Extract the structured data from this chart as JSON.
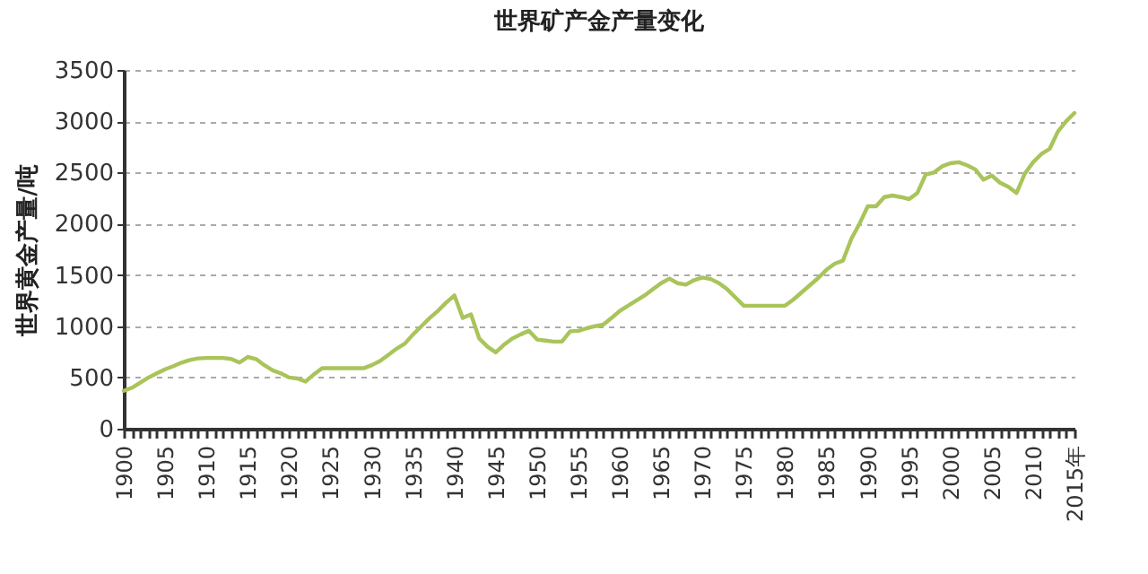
{
  "chart_data": {
    "type": "line",
    "title": "世界矿产金产量变化",
    "ylabel": "世界黄金产量/吨",
    "x": [
      1900,
      1901,
      1902,
      1903,
      1904,
      1905,
      1906,
      1907,
      1908,
      1909,
      1910,
      1911,
      1912,
      1913,
      1914,
      1915,
      1916,
      1917,
      1918,
      1919,
      1920,
      1921,
      1922,
      1923,
      1924,
      1925,
      1926,
      1927,
      1928,
      1929,
      1930,
      1931,
      1932,
      1933,
      1934,
      1935,
      1936,
      1937,
      1938,
      1939,
      1940,
      1941,
      1942,
      1943,
      1944,
      1945,
      1946,
      1947,
      1948,
      1949,
      1950,
      1951,
      1952,
      1953,
      1954,
      1955,
      1956,
      1957,
      1958,
      1959,
      1960,
      1961,
      1962,
      1963,
      1964,
      1965,
      1966,
      1967,
      1968,
      1969,
      1970,
      1971,
      1972,
      1973,
      1974,
      1975,
      1976,
      1977,
      1978,
      1979,
      1980,
      1981,
      1982,
      1983,
      1984,
      1985,
      1986,
      1987,
      1988,
      1989,
      1990,
      1991,
      1992,
      1993,
      1994,
      1995,
      1996,
      1997,
      1998,
      1999,
      2000,
      2001,
      2002,
      2003,
      2004,
      2005,
      2006,
      2007,
      2008,
      2009,
      2010,
      2011,
      2012,
      2013,
      2014,
      2015
    ],
    "series": [
      {
        "color": "#a9c45a",
        "values": [
          370,
          400,
          450,
          500,
          540,
          580,
          610,
          645,
          670,
          686,
          690,
          690,
          690,
          680,
          645,
          700,
          680,
          620,
          570,
          540,
          500,
          490,
          460,
          530,
          590,
          590,
          590,
          590,
          590,
          590,
          620,
          660,
          720,
          780,
          830,
          920,
          1000,
          1080,
          1150,
          1230,
          1300,
          1080,
          1115,
          880,
          800,
          745,
          820,
          880,
          920,
          955,
          870,
          860,
          850,
          850,
          950,
          955,
          980,
          1000,
          1015,
          1080,
          1150,
          1200,
          1250,
          1300,
          1360,
          1420,
          1465,
          1420,
          1405,
          1450,
          1475,
          1460,
          1420,
          1360,
          1280,
          1200,
          1200,
          1200,
          1200,
          1200,
          1200,
          1260,
          1330,
          1400,
          1470,
          1550,
          1610,
          1640,
          1850,
          2000,
          2170,
          2170,
          2260,
          2275,
          2260,
          2240,
          2300,
          2480,
          2500,
          2560,
          2590,
          2600,
          2570,
          2530,
          2430,
          2470,
          2400,
          2360,
          2300,
          2490,
          2600,
          2680,
          2730,
          2900,
          3000,
          3080
        ]
      }
    ],
    "xlim": [
      1900,
      2015
    ],
    "xticks": [
      1900,
      {
        "value": 1901,
        "label": null
      },
      {
        "value": 1902,
        "label": null
      },
      {
        "value": 1903,
        "label": null
      },
      {
        "value": 1904,
        "label": null
      },
      1905,
      {
        "value": 1906,
        "label": null
      },
      {
        "value": 1907,
        "label": null
      },
      {
        "value": 1908,
        "label": null
      },
      {
        "value": 1909,
        "label": null
      },
      1910,
      {
        "value": 1911,
        "label": null
      },
      {
        "value": 1912,
        "label": null
      },
      {
        "value": 1913,
        "label": null
      },
      {
        "value": 1914,
        "label": null
      },
      1915,
      {
        "value": 1916,
        "label": null
      },
      {
        "value": 1917,
        "label": null
      },
      {
        "value": 1918,
        "label": null
      },
      {
        "value": 1919,
        "label": null
      },
      1920,
      {
        "value": 1921,
        "label": null
      },
      {
        "value": 1922,
        "label": null
      },
      {
        "value": 1923,
        "label": null
      },
      {
        "value": 1924,
        "label": null
      },
      1925,
      {
        "value": 1926,
        "label": null
      },
      {
        "value": 1927,
        "label": null
      },
      {
        "value": 1928,
        "label": null
      },
      {
        "value": 1929,
        "label": null
      },
      1930,
      {
        "value": 1931,
        "label": null
      },
      {
        "value": 1932,
        "label": null
      },
      {
        "value": 1933,
        "label": null
      },
      {
        "value": 1934,
        "label": null
      },
      1935,
      {
        "value": 1936,
        "label": null
      },
      {
        "value": 1937,
        "label": null
      },
      {
        "value": 1938,
        "label": null
      },
      {
        "value": 1939,
        "label": null
      },
      1940,
      {
        "value": 1941,
        "label": null
      },
      {
        "value": 1942,
        "label": null
      },
      {
        "value": 1943,
        "label": null
      },
      {
        "value": 1944,
        "label": null
      },
      1945,
      {
        "value": 1946,
        "label": null
      },
      {
        "value": 1947,
        "label": null
      },
      {
        "value": 1948,
        "label": null
      },
      {
        "value": 1949,
        "label": null
      },
      1950,
      {
        "value": 1951,
        "label": null
      },
      {
        "value": 1952,
        "label": null
      },
      {
        "value": 1953,
        "label": null
      },
      {
        "value": 1954,
        "label": null
      },
      1955,
      {
        "value": 1956,
        "label": null
      },
      {
        "value": 1957,
        "label": null
      },
      {
        "value": 1958,
        "label": null
      },
      {
        "value": 1959,
        "label": null
      },
      1960,
      {
        "value": 1961,
        "label": null
      },
      {
        "value": 1962,
        "label": null
      },
      {
        "value": 1963,
        "label": null
      },
      {
        "value": 1964,
        "label": null
      },
      1965,
      {
        "value": 1966,
        "label": null
      },
      {
        "value": 1967,
        "label": null
      },
      {
        "value": 1968,
        "label": null
      },
      {
        "value": 1969,
        "label": null
      },
      1970,
      {
        "value": 1971,
        "label": null
      },
      {
        "value": 1972,
        "label": null
      },
      {
        "value": 1973,
        "label": null
      },
      {
        "value": 1974,
        "label": null
      },
      1975,
      {
        "value": 1976,
        "label": null
      },
      {
        "value": 1977,
        "label": null
      },
      {
        "value": 1978,
        "label": null
      },
      {
        "value": 1979,
        "label": null
      },
      1980,
      {
        "value": 1981,
        "label": null
      },
      {
        "value": 1982,
        "label": null
      },
      {
        "value": 1983,
        "label": null
      },
      {
        "value": 1984,
        "label": null
      },
      1985,
      {
        "value": 1986,
        "label": null
      },
      {
        "value": 1987,
        "label": null
      },
      {
        "value": 1988,
        "label": null
      },
      {
        "value": 1989,
        "label": null
      },
      1990,
      {
        "value": 1991,
        "label": null
      },
      {
        "value": 1992,
        "label": null
      },
      {
        "value": 1993,
        "label": null
      },
      {
        "value": 1994,
        "label": null
      },
      1995,
      {
        "value": 1996,
        "label": null
      },
      {
        "value": 1997,
        "label": null
      },
      {
        "value": 1998,
        "label": null
      },
      {
        "value": 1999,
        "label": null
      },
      2000,
      {
        "value": 2001,
        "label": null
      },
      {
        "value": 2002,
        "label": null
      },
      {
        "value": 2003,
        "label": null
      },
      {
        "value": 2004,
        "label": null
      },
      2005,
      {
        "value": 2006,
        "label": null
      },
      {
        "value": 2007,
        "label": null
      },
      {
        "value": 2008,
        "label": null
      },
      {
        "value": 2009,
        "label": null
      },
      2010,
      {
        "value": 2011,
        "label": null
      },
      {
        "value": 2012,
        "label": null
      },
      {
        "value": 2013,
        "label": null
      },
      {
        "value": 2014,
        "label": null
      },
      {
        "value": 2015,
        "label": "2015年"
      }
    ],
    "ylim": [
      0,
      3500
    ],
    "yticks": [
      0,
      500,
      1000,
      1500,
      2000,
      2500,
      3000,
      3500
    ],
    "grid": "y",
    "legend": false,
    "line_style": "solid",
    "marker": "none"
  }
}
